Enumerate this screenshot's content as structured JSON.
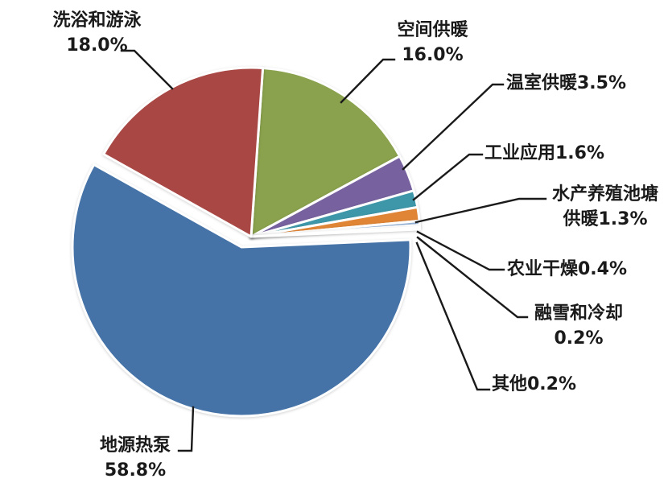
{
  "page": {
    "background": "#ffffff"
  },
  "chart_data": {
    "type": "pie",
    "title": "",
    "legend_position": "none",
    "data_labels": "outside-with-leader-lines",
    "start_angle_deg": 4,
    "direction": "clockwise",
    "slices": [
      {
        "label": "空间供暖",
        "value": 16.0,
        "pct_label": "16.0%",
        "color": "#8aa24d",
        "exploded": false
      },
      {
        "label": "温室供暖",
        "value": 3.5,
        "pct_label": "3.5%",
        "color": "#77629f",
        "exploded": false
      },
      {
        "label": "工业应用",
        "value": 1.6,
        "pct_label": "1.6%",
        "color": "#3e97a9",
        "exploded": false
      },
      {
        "label": "水产养殖池塘供暖",
        "value": 1.3,
        "pct_label": "1.3%",
        "color": "#e08536",
        "exploded": false
      },
      {
        "label": "农业干燥",
        "value": 0.4,
        "pct_label": "0.4%",
        "color": "#95b3d7",
        "exploded": false
      },
      {
        "label": "融雪和冷却",
        "value": 0.2,
        "pct_label": "0.2%",
        "color": "#d99694",
        "exploded": false
      },
      {
        "label": "其他",
        "value": 0.2,
        "pct_label": "0.2%",
        "color": "#c3d69b",
        "exploded": false
      },
      {
        "label": "地源热泵",
        "value": 58.8,
        "pct_label": "58.8%",
        "color": "#4573a7",
        "exploded": true
      },
      {
        "label": "洗浴和游泳",
        "value": 18.0,
        "pct_label": "18.0%",
        "color": "#a84744",
        "exploded": false
      }
    ]
  },
  "labels": {
    "bathing": {
      "line1": "洗浴和游泳",
      "line2": "18.0%"
    },
    "space": {
      "line1": "空间供暖",
      "line2": "16.0%"
    },
    "greenhouse": {
      "text": "温室供暖3.5%"
    },
    "industrial": {
      "text": "工业应用1.6%"
    },
    "aquaculture": {
      "line1": "水产养殖池塘",
      "line2": "供暖1.3%"
    },
    "agri_drying": {
      "text": "农业干燥0.4%"
    },
    "snow_cool": {
      "line1": "融雪和冷却",
      "line2": "0.2%"
    },
    "other": {
      "text": "其他0.2%"
    },
    "ghp": {
      "line1": "地源热泵",
      "line2": "58.8%"
    }
  },
  "style": {
    "leader_color": "#1a1a1a",
    "text_color": "#1a1a1a",
    "slice_border_color": "#ffffff"
  }
}
